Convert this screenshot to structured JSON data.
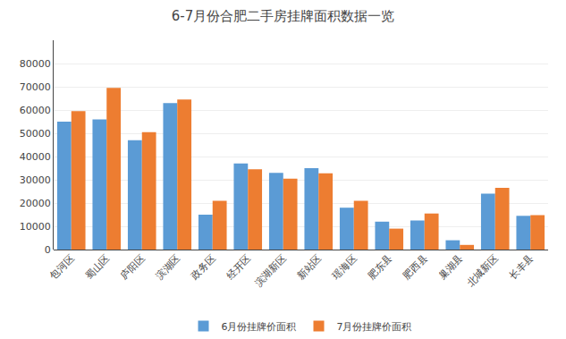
{
  "chart_data": {
    "type": "bar",
    "title": "6-7月份合肥二手房挂牌面积数据一览",
    "categories": [
      "包河区",
      "蜀山区",
      "庐阳区",
      "滨湖区",
      "政务区",
      "经开区",
      "滨湖新区",
      "新站区",
      "瑶海区",
      "肥东县",
      "肥西县",
      "巢湖县",
      "北城新区",
      "长丰县"
    ],
    "series": [
      {
        "name": "6月份挂牌价面积",
        "color": "#5B9BD5",
        "values": [
          55000,
          56000,
          47000,
          63000,
          15000,
          37000,
          33000,
          35000,
          18000,
          12000,
          12500,
          4000,
          24000,
          14500
        ]
      },
      {
        "name": "7月份挂牌价面积",
        "color": "#ED7D31",
        "values": [
          59500,
          69500,
          50500,
          64500,
          21000,
          34500,
          30500,
          32800,
          21000,
          9000,
          15500,
          2000,
          26500,
          14800
        ]
      }
    ],
    "ylim": [
      0,
      90000
    ],
    "yticks": [
      0,
      10000,
      20000,
      30000,
      40000,
      50000,
      60000,
      70000,
      80000
    ],
    "grid": true,
    "legend": "bottom"
  }
}
